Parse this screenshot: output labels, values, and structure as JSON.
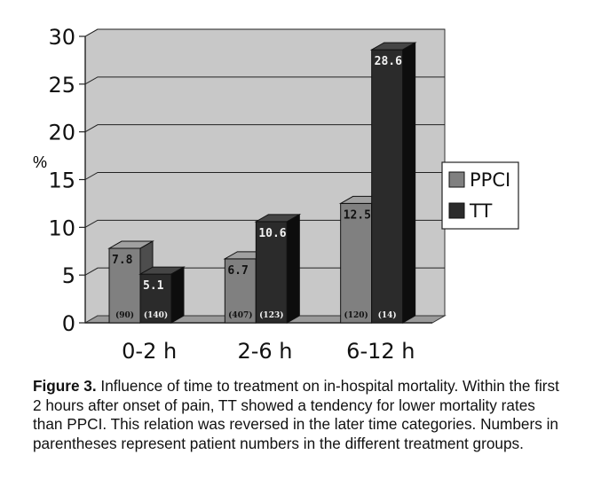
{
  "chart_data": {
    "type": "bar",
    "style": "3d",
    "categories": [
      "0-2 h",
      "2-6 h",
      "6-12 h"
    ],
    "ylabel": "%",
    "ylim": [
      0,
      30
    ],
    "yticks": [
      "0",
      "5",
      "10",
      "15",
      "20",
      "25",
      "30"
    ],
    "grid": true,
    "legend": "right",
    "series": [
      {
        "name": "PPCI",
        "values": [
          7.8,
          6.7,
          12.5
        ],
        "value_labels": [
          "7.8",
          "6.7",
          "12.5"
        ],
        "patients": [
          "(90)",
          "(407)",
          "(120)"
        ],
        "color": "#808080"
      },
      {
        "name": "TT",
        "values": [
          5.1,
          10.6,
          28.6
        ],
        "value_labels": [
          "5.1",
          "10.6",
          "28.6"
        ],
        "patients": [
          "(140)",
          "(123)",
          "(14)"
        ],
        "color": "#2b2b2b"
      }
    ],
    "background": "#c8c8c8"
  },
  "caption": {
    "label": "Figure 3.",
    "text": " Influence of time to treatment on in-hospital mortality. Within the first 2 hours after onset of pain, TT showed a tendency for lower mortality rates than PPCI. This relation was reversed in the later time categories. Numbers in parentheses represent patient numbers in the different treatment groups."
  }
}
